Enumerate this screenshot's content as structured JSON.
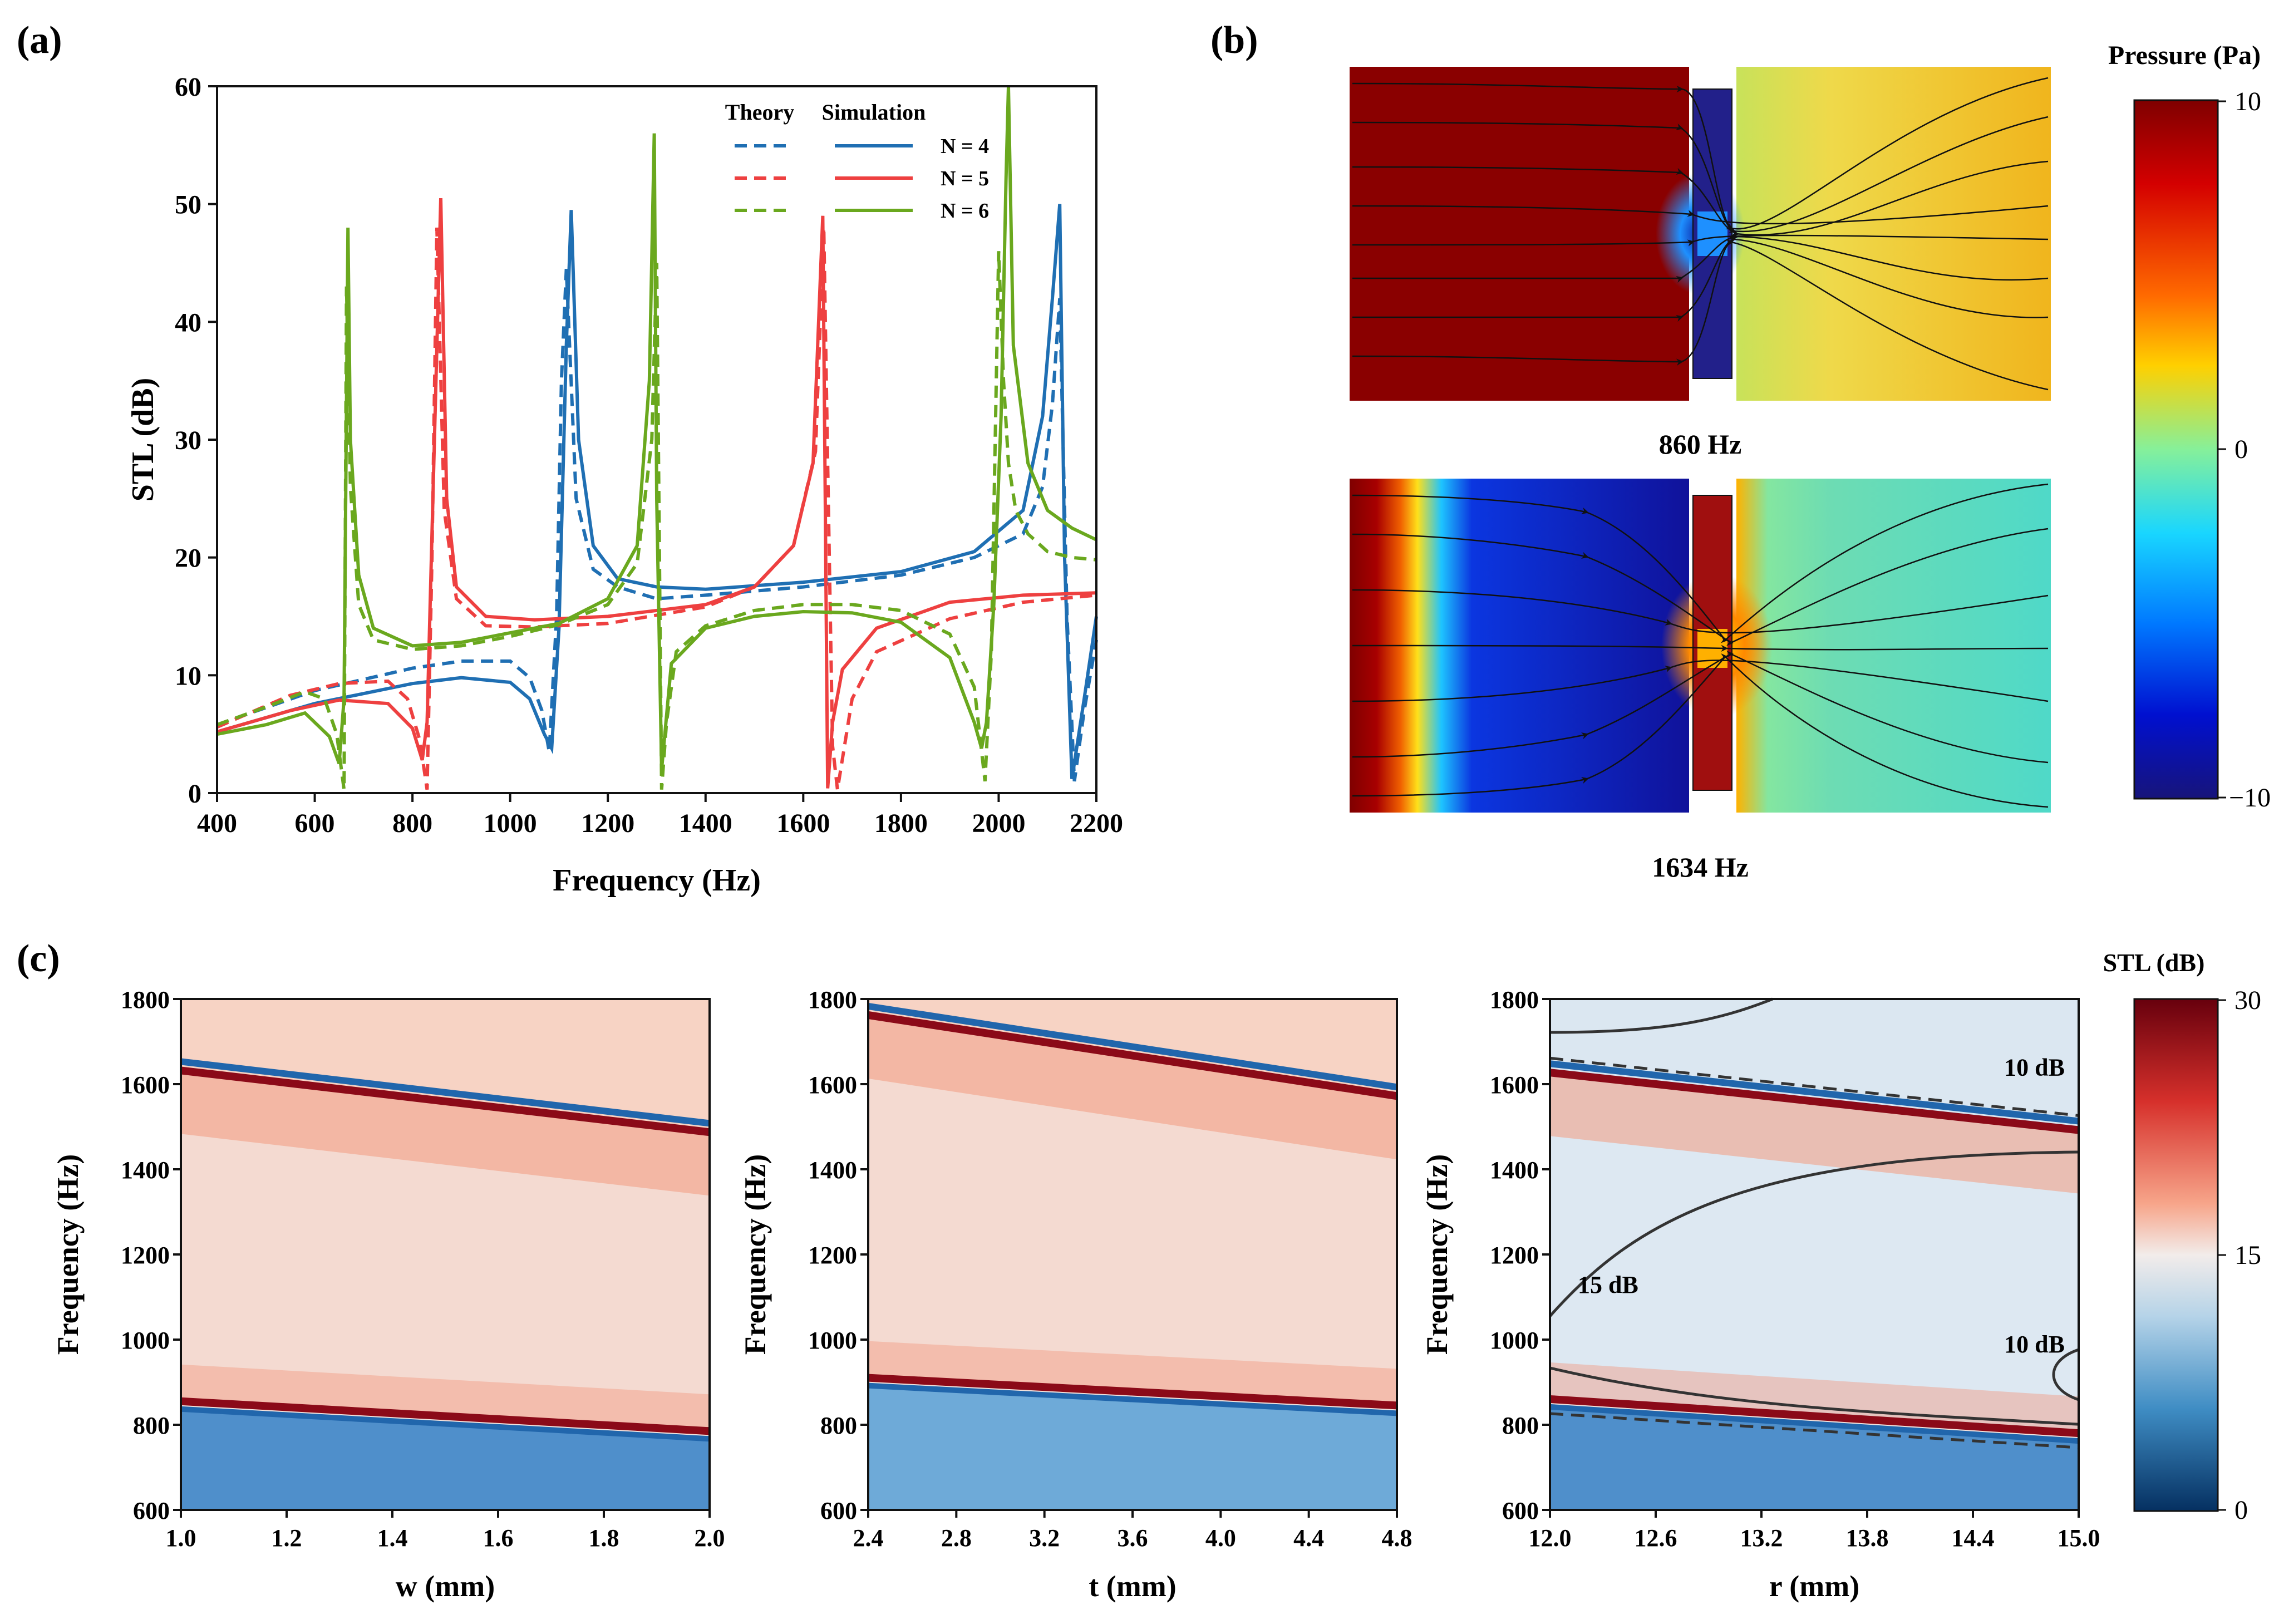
{
  "panels": {
    "a": {
      "label": "(a)"
    },
    "b": {
      "label": "(b)"
    },
    "c": {
      "label": "(c)"
    }
  },
  "chart_data": [
    {
      "id": "a",
      "type": "line",
      "title": "",
      "xlabel": "Frequency (Hz)",
      "ylabel": "STL (dB)",
      "xlim": [
        400,
        2200
      ],
      "ylim": [
        0,
        60
      ],
      "xticks": [
        400,
        600,
        800,
        1000,
        1200,
        1400,
        1600,
        1800,
        2000,
        2200
      ],
      "yticks": [
        0,
        10,
        20,
        30,
        40,
        50,
        60
      ],
      "legend": {
        "position": "top-right",
        "col_headers": [
          "Theory",
          "Simulation"
        ],
        "rows": [
          {
            "label": "N = 4",
            "color": "#1f6fb3"
          },
          {
            "label": "N = 5",
            "color": "#ee4040"
          },
          {
            "label": "N = 6",
            "color": "#6aa81e"
          }
        ]
      },
      "series": [
        {
          "name": "N = 4 Simulation",
          "style": "solid",
          "color": "#1f6fb3",
          "x": [
            400,
            600,
            800,
            900,
            1000,
            1040,
            1070,
            1085,
            1100,
            1115,
            1125,
            1140,
            1170,
            1220,
            1300,
            1400,
            1600,
            1800,
            1950,
            2050,
            2090,
            2110,
            2125,
            2135,
            2150,
            2175,
            2200
          ],
          "y": [
            5.2,
            7.6,
            9.3,
            9.8,
            9.4,
            8.0,
            5.0,
            3.8,
            14.0,
            38.0,
            49.5,
            30.0,
            21.0,
            18.2,
            17.5,
            17.3,
            17.9,
            18.8,
            20.5,
            24.0,
            32.0,
            42.0,
            50.0,
            20.0,
            1.2,
            8.0,
            15.0
          ]
        },
        {
          "name": "N = 4 Theory",
          "style": "dashed",
          "color": "#1f6fb3",
          "x": [
            400,
            600,
            800,
            900,
            1000,
            1040,
            1065,
            1080,
            1095,
            1105,
            1115,
            1135,
            1170,
            1220,
            1300,
            1400,
            1600,
            1800,
            1950,
            2050,
            2090,
            2110,
            2125,
            2140,
            2155,
            2175,
            2200
          ],
          "y": [
            5.8,
            8.7,
            10.6,
            11.2,
            11.2,
            9.8,
            7.0,
            3.5,
            15.0,
            35.0,
            44.5,
            25.0,
            19.0,
            17.5,
            16.5,
            16.8,
            17.5,
            18.5,
            20.0,
            22.0,
            26.0,
            33.0,
            42.0,
            15.0,
            1.0,
            7.0,
            13.0
          ]
        },
        {
          "name": "N = 5 Simulation",
          "style": "solid",
          "color": "#ee4040",
          "x": [
            400,
            550,
            650,
            750,
            800,
            820,
            830,
            845,
            858,
            870,
            890,
            950,
            1050,
            1200,
            1400,
            1500,
            1580,
            1620,
            1640,
            1645,
            1650,
            1660,
            1680,
            1750,
            1900,
            2050,
            2200
          ],
          "y": [
            5.2,
            7.0,
            7.9,
            7.6,
            5.5,
            2.8,
            6.0,
            30.0,
            50.5,
            25.0,
            17.5,
            15.0,
            14.7,
            15.0,
            16.0,
            17.5,
            21.0,
            28.0,
            49.0,
            25.0,
            0.4,
            6.0,
            10.5,
            14.0,
            16.2,
            16.8,
            17.0
          ]
        },
        {
          "name": "N = 5 Theory",
          "style": "dashed",
          "color": "#ee4040",
          "x": [
            400,
            550,
            650,
            750,
            790,
            815,
            830,
            840,
            850,
            865,
            890,
            950,
            1050,
            1200,
            1400,
            1500,
            1580,
            1625,
            1642,
            1650,
            1660,
            1670,
            1700,
            1750,
            1900,
            2050,
            2200
          ],
          "y": [
            5.6,
            8.3,
            9.3,
            9.5,
            8.0,
            4.5,
            0.3,
            20.0,
            48.0,
            24.0,
            16.5,
            14.2,
            14.1,
            14.4,
            15.8,
            17.5,
            21.0,
            29.0,
            48.0,
            28.0,
            4.0,
            0.3,
            8.0,
            12.0,
            14.8,
            16.2,
            16.8
          ]
        },
        {
          "name": "N = 6 Simulation",
          "style": "solid",
          "color": "#6aa81e",
          "x": [
            400,
            500,
            580,
            630,
            650,
            660,
            668,
            673,
            690,
            720,
            800,
            900,
            1000,
            1100,
            1200,
            1260,
            1285,
            1295,
            1300,
            1310,
            1330,
            1400,
            1500,
            1600,
            1700,
            1800,
            1900,
            1950,
            1965,
            1975,
            1990,
            2005,
            2015,
            2020,
            2030,
            2060,
            2100,
            2150,
            2200
          ],
          "y": [
            5.0,
            5.8,
            6.8,
            4.8,
            2.5,
            8.0,
            48.0,
            30.0,
            18.5,
            14.0,
            12.5,
            12.8,
            13.6,
            14.4,
            16.5,
            21.0,
            35.0,
            56.0,
            25.0,
            2.0,
            11.0,
            14.0,
            15.0,
            15.4,
            15.3,
            14.5,
            11.5,
            6.0,
            3.8,
            6.0,
            16.0,
            32.0,
            52.0,
            60.0,
            38.0,
            28.0,
            24.0,
            22.5,
            21.5
          ]
        },
        {
          "name": "N = 6 Theory",
          "style": "dashed",
          "color": "#6aa81e",
          "x": [
            400,
            500,
            580,
            620,
            645,
            660,
            665,
            673,
            690,
            720,
            800,
            900,
            1000,
            1100,
            1200,
            1260,
            1290,
            1300,
            1310,
            1320,
            1340,
            1400,
            1500,
            1600,
            1700,
            1800,
            1900,
            1950,
            1972,
            1985,
            2000,
            2010,
            2020,
            2035,
            2060,
            2100,
            2150,
            2200
          ],
          "y": [
            5.8,
            7.3,
            8.6,
            8.0,
            5.0,
            0.3,
            43.0,
            26.0,
            16.0,
            13.0,
            12.2,
            12.5,
            13.3,
            14.3,
            16.0,
            19.5,
            30.0,
            45.0,
            0.3,
            6.0,
            12.0,
            14.2,
            15.5,
            16.0,
            16.0,
            15.5,
            13.5,
            9.0,
            1.0,
            12.0,
            46.0,
            35.0,
            28.0,
            24.0,
            22.0,
            20.5,
            20.0,
            19.8
          ]
        }
      ]
    },
    {
      "id": "b",
      "type": "heatmap",
      "title": "Pressure (Pa)",
      "colorbar_label": "Pressure (Pa)",
      "colorbar_range": [
        -10,
        10
      ],
      "colorbar_ticks": [
        10,
        0,
        -10
      ],
      "colorbar_tick_labels": [
        "10",
        "0",
        "−10"
      ],
      "maps": [
        {
          "caption": "860 Hz"
        },
        {
          "caption": "1634 Hz"
        }
      ]
    },
    {
      "id": "c",
      "type": "heatmap",
      "colorbar_label": "STL (dB)",
      "colorbar_range": [
        0,
        30
      ],
      "colorbar_ticks": [
        30,
        15,
        0
      ],
      "maps": [
        {
          "xlabel": "w (mm)",
          "ylabel": "Frequency (Hz)",
          "xlim": [
            1.0,
            2.0
          ],
          "ylim": [
            600,
            1800
          ],
          "xticks": [
            "1.0",
            "1.2",
            "1.4",
            "1.6",
            "1.8",
            "2.0"
          ],
          "yticks": [
            600,
            800,
            1000,
            1200,
            1400,
            1600,
            1800
          ],
          "upper_band_hz": [
            1640,
            1495
          ],
          "lower_band_hz": [
            850,
            780
          ]
        },
        {
          "xlabel": "t (mm)",
          "ylabel": "Frequency (Hz)",
          "xlim": [
            2.4,
            4.8
          ],
          "ylim": [
            600,
            1800
          ],
          "xticks": [
            "2.4",
            "2.8",
            "3.2",
            "3.6",
            "4.0",
            "4.4",
            "4.8"
          ],
          "yticks": [
            600,
            800,
            1000,
            1200,
            1400,
            1600,
            1800
          ],
          "upper_band_hz": [
            1770,
            1580
          ],
          "lower_band_hz": [
            905,
            840
          ]
        },
        {
          "xlabel": "r (mm)",
          "ylabel": "Frequency (Hz)",
          "xlim": [
            12.0,
            15.0
          ],
          "ylim": [
            600,
            1800
          ],
          "xticks": [
            "12.0",
            "12.6",
            "13.2",
            "13.8",
            "14.4",
            "15.0"
          ],
          "yticks": [
            600,
            800,
            1000,
            1200,
            1400,
            1600,
            1800
          ],
          "upper_band_hz": [
            1635,
            1500
          ],
          "lower_band_hz": [
            855,
            775
          ],
          "annotations": [
            "10 dB",
            "15 dB",
            "10 dB"
          ]
        }
      ]
    }
  ]
}
